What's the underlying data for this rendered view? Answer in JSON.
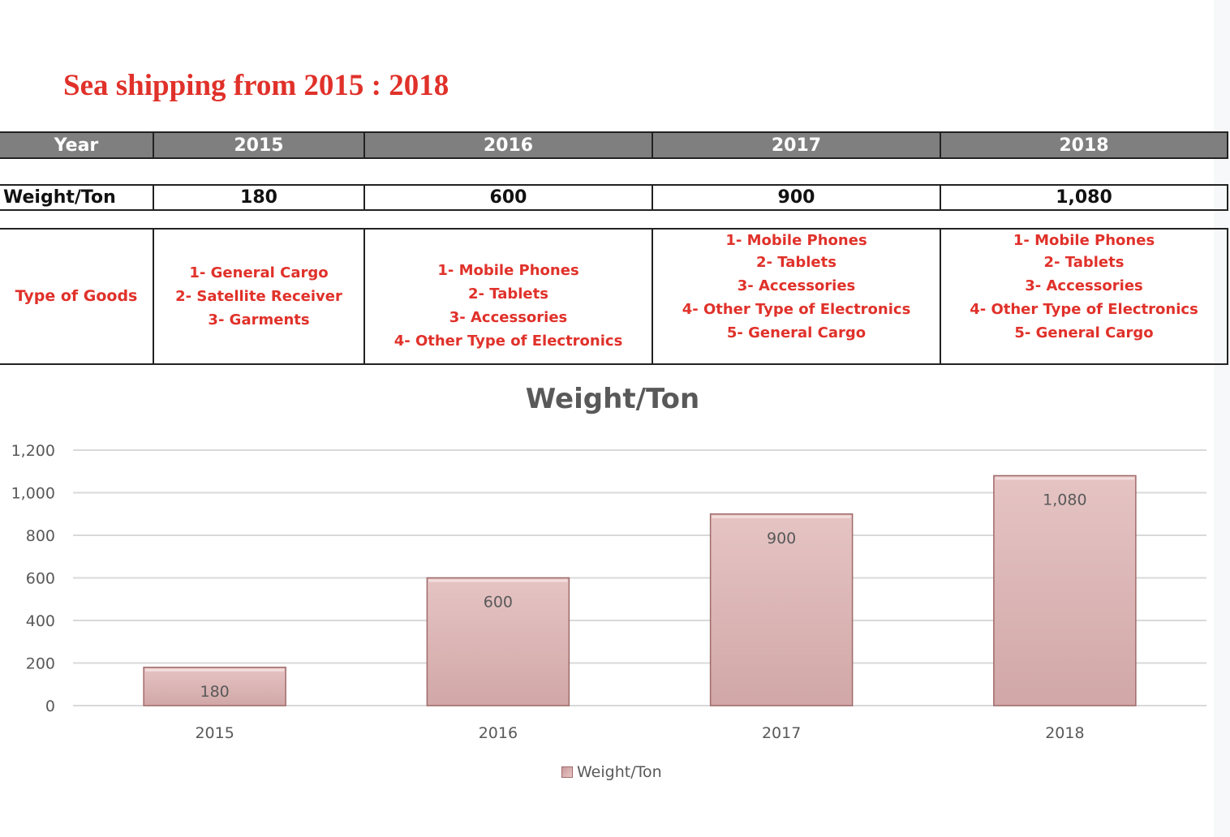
{
  "page": {
    "title": "Sea shipping from 2015 : 2018"
  },
  "table": {
    "year_label": "Year",
    "years": [
      "2015",
      "2016",
      "2017",
      "2018"
    ],
    "weight_label": "Weight/Ton",
    "weights": [
      "180",
      "600",
      "900",
      "1,080"
    ],
    "goods_label": "Type of Goods",
    "goods": [
      [
        "1- General Cargo",
        "2- Satellite Receiver",
        "3- Garments"
      ],
      [
        "1- Mobile Phones",
        "2- Tablets",
        "3- Accessories",
        "4- Other Type of Electronics"
      ],
      [
        "1- Mobile Phones",
        "2- Tablets",
        "3- Accessories",
        "4- Other Type of Electronics",
        "5- General Cargo"
      ],
      [
        "1- Mobile Phones",
        "2- Tablets",
        "3- Accessories",
        "4- Other Type of Electronics",
        "5- General Cargo"
      ]
    ]
  },
  "colors": {
    "title_red": "#e0312a",
    "header_gray": "#7f7f7f",
    "bar_fill": "#dcb5b5",
    "bar_edge": "#a06a6a",
    "grid": "#d9d9d9",
    "text_gray": "#595959"
  },
  "chart_data": {
    "type": "bar",
    "title": "Weight/Ton",
    "categories": [
      "2015",
      "2016",
      "2017",
      "2018"
    ],
    "series": [
      {
        "name": "Weight/Ton",
        "values": [
          180,
          600,
          900,
          1080
        ]
      }
    ],
    "data_labels": [
      "180",
      "600",
      "900",
      "1,080"
    ],
    "ylim": [
      0,
      1200
    ],
    "yticks": [
      0,
      200,
      400,
      600,
      800,
      1000,
      1200
    ],
    "ytick_labels": [
      "0",
      "200",
      "400",
      "600",
      "800",
      "1,000",
      "1,200"
    ],
    "grid": true,
    "legend": "bottom",
    "xlabel": "",
    "ylabel": ""
  }
}
